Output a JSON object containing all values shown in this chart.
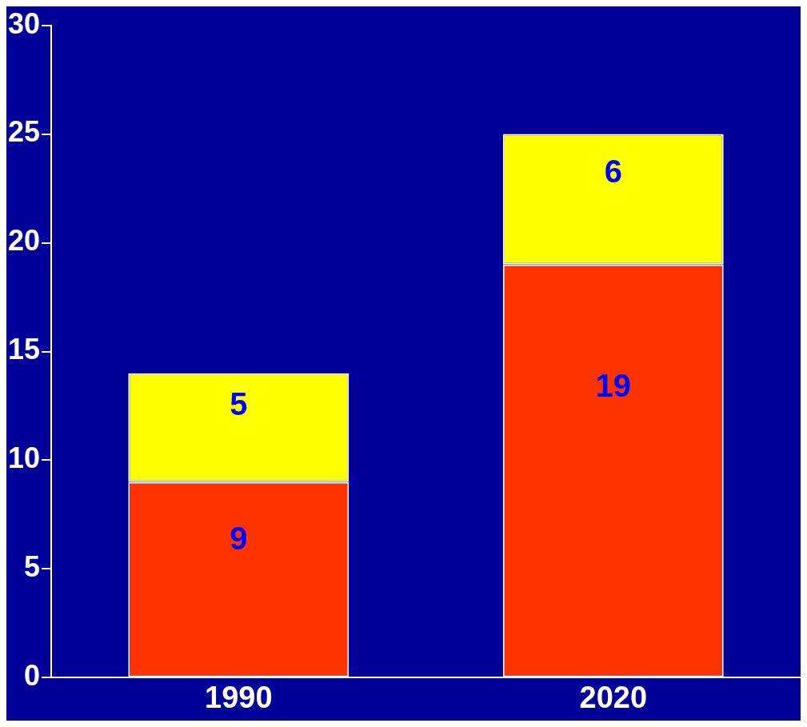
{
  "chart_data": {
    "type": "bar",
    "stacked": true,
    "categories": [
      "1990",
      "2020"
    ],
    "series": [
      {
        "color": "#ff3300",
        "values": [
          9,
          19
        ]
      },
      {
        "color": "#ffff00",
        "values": [
          5,
          6
        ]
      }
    ],
    "ylim": [
      0,
      30
    ],
    "yticks": [
      0,
      5,
      10,
      15,
      20,
      25,
      30
    ],
    "grid": false,
    "legend": false,
    "data_labels": true
  }
}
